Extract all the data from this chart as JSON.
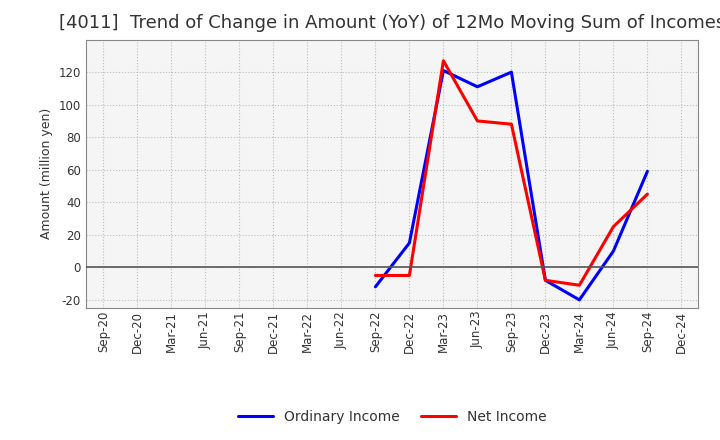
{
  "title": "[4011]  Trend of Change in Amount (YoY) of 12Mo Moving Sum of Incomes",
  "ylabel": "Amount (million yen)",
  "background_color": "#ffffff",
  "plot_bg_color": "#f5f5f5",
  "grid_color": "#bbbbbb",
  "title_fontsize": 13,
  "title_color": "#333333",
  "x_labels": [
    "Sep-20",
    "Dec-20",
    "Mar-21",
    "Jun-21",
    "Sep-21",
    "Dec-21",
    "Mar-22",
    "Jun-22",
    "Sep-22",
    "Dec-22",
    "Mar-23",
    "Jun-23",
    "Sep-23",
    "Dec-23",
    "Mar-24",
    "Jun-24",
    "Sep-24",
    "Dec-24"
  ],
  "ordinary_income": [
    null,
    null,
    null,
    null,
    null,
    null,
    null,
    null,
    -12,
    15,
    121,
    111,
    120,
    -8,
    -20,
    10,
    59,
    null
  ],
  "net_income": [
    null,
    null,
    null,
    null,
    null,
    null,
    null,
    null,
    -5,
    -5,
    127,
    90,
    88,
    -8,
    -11,
    25,
    45,
    null
  ],
  "line_color_ordinary": "#0000ff",
  "line_color_net": "#ff0000",
  "ylim": [
    -25,
    140
  ],
  "yticks": [
    -20,
    0,
    20,
    40,
    60,
    80,
    100,
    120
  ],
  "linewidth": 2.2,
  "legend_fontsize": 10,
  "tick_fontsize": 8.5,
  "ylabel_fontsize": 9
}
